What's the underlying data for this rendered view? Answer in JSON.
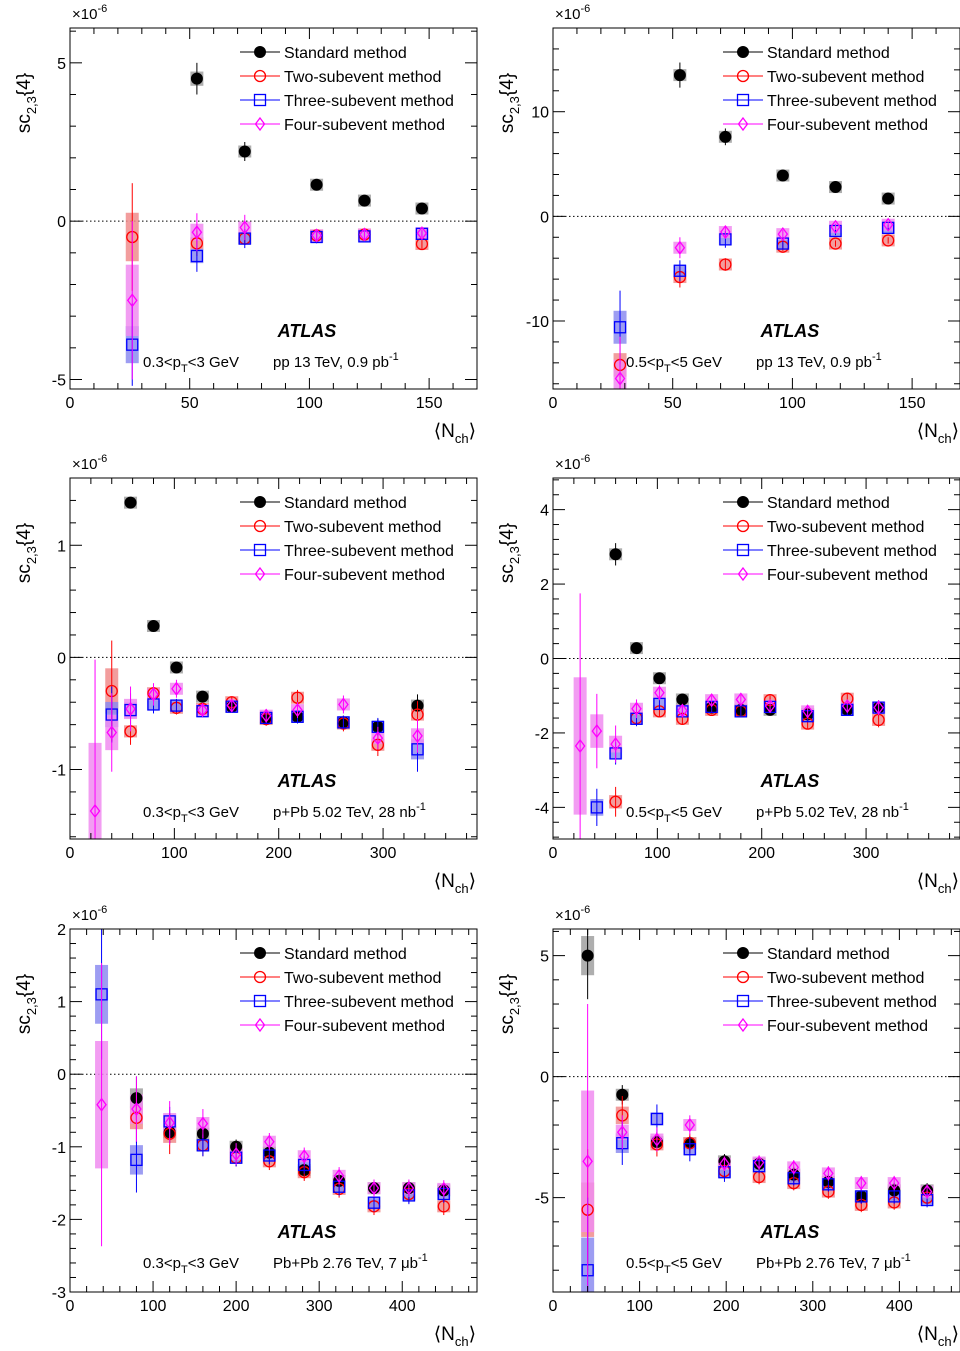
{
  "figure": {
    "legend": [
      "Standard method",
      "Two-subevent method",
      "Three-subevent method",
      "Four-subevent method"
    ],
    "experiment_label": "ATLAS",
    "ylabel_main": "sc",
    "ylabel_sub": "2,3",
    "ylabel_tail": "{4}",
    "xlabel_main": "⟨N",
    "xlabel_sub": "ch",
    "xlabel_tail": "⟩",
    "scale_label_base": "×10",
    "scale_label_exp": "-6"
  },
  "colors": {
    "standard": "#000000",
    "two_subevent": "#ff0000",
    "three_subevent": "#0000ff",
    "four_subevent": "#ff00ff",
    "standard_box": "#a0a0a0",
    "two_subevent_box": "#f08c8c",
    "three_subevent_box": "#8c8cf0",
    "four_subevent_box": "#f08cf0"
  },
  "chart_data": [
    {
      "type": "scatter",
      "kinematics": {
        "pre": "0.3<p",
        "sub": "T",
        "post": "<3 GeV"
      },
      "system": {
        "text": "pp 13 TeV, 0.9 pb",
        "sup": "-1"
      },
      "xlim": [
        0,
        170
      ],
      "ylim": [
        -5.3,
        6.1
      ],
      "xticks": [
        0,
        50,
        100,
        150
      ],
      "yticks": [
        -5,
        0,
        5
      ],
      "xlabel": "⟨Nch⟩",
      "ylabel": "sc2,3{4}",
      "series": [
        {
          "name": "Standard method",
          "x": [
            53,
            73,
            103,
            123,
            147
          ],
          "y": [
            4.5,
            2.2,
            1.15,
            0.65,
            0.4
          ],
          "err": [
            0.5,
            0.3,
            0.15,
            0.1,
            0.08
          ]
        },
        {
          "name": "Two-subevent method",
          "x": [
            26,
            53,
            73,
            103,
            123,
            147
          ],
          "y": [
            -0.5,
            -0.7,
            -0.55,
            -0.45,
            -0.42,
            -0.72
          ],
          "err": [
            1.7,
            0.4,
            0.2,
            0.15,
            0.1,
            0.15
          ]
        },
        {
          "name": "Three-subevent method",
          "x": [
            26,
            53,
            73,
            103,
            123,
            147
          ],
          "y": [
            -3.9,
            -1.1,
            -0.55,
            -0.5,
            -0.48,
            -0.4
          ],
          "err": [
            1.3,
            0.5,
            0.3,
            0.2,
            0.12,
            0.1
          ]
        },
        {
          "name": "Four-subevent method",
          "x": [
            26,
            53,
            73,
            103,
            123,
            147
          ],
          "y": [
            -2.5,
            -0.35,
            -0.2,
            -0.45,
            -0.42,
            -0.38
          ],
          "err": [
            2.5,
            0.6,
            0.4,
            0.2,
            0.15,
            0.12
          ]
        }
      ]
    },
    {
      "type": "scatter",
      "kinematics": {
        "pre": "0.5<p",
        "sub": "T",
        "post": "<5 GeV"
      },
      "system": {
        "text": "pp 13 TeV, 0.9 pb",
        "sup": "-1"
      },
      "xlim": [
        0,
        170
      ],
      "ylim": [
        -16.5,
        18
      ],
      "xticks": [
        0,
        50,
        100,
        150
      ],
      "yticks": [
        -10,
        0,
        10
      ],
      "xlabel": "⟨Nch⟩",
      "ylabel": "sc2,3{4}",
      "series": [
        {
          "name": "Standard method",
          "x": [
            53,
            72,
            96,
            118,
            140
          ],
          "y": [
            13.5,
            7.6,
            3.9,
            2.8,
            1.7
          ],
          "err": [
            1.2,
            0.8,
            0.4,
            0.3,
            0.2
          ]
        },
        {
          "name": "Two-subevent method",
          "x": [
            28,
            53,
            72,
            96,
            118,
            140
          ],
          "y": [
            -14.2,
            -5.8,
            -4.6,
            -2.9,
            -2.6,
            -2.3
          ],
          "err": [
            2.5,
            1.0,
            0.6,
            0.4,
            0.3,
            0.3
          ]
        },
        {
          "name": "Three-subevent method",
          "x": [
            28,
            53,
            72,
            96,
            118,
            140
          ],
          "y": [
            -10.6,
            -5.2,
            -2.2,
            -2.6,
            -1.4,
            -1.1
          ],
          "err": [
            3.5,
            1.0,
            0.8,
            0.5,
            0.4,
            0.3
          ]
        },
        {
          "name": "Four-subevent method",
          "x": [
            28,
            53,
            72,
            96,
            118,
            140
          ],
          "y": [
            -15.5,
            -3.0,
            -1.5,
            -1.7,
            -1.0,
            -0.8
          ],
          "err": [
            4.0,
            1.0,
            0.6,
            0.4,
            0.3,
            0.3
          ]
        }
      ]
    },
    {
      "type": "scatter",
      "kinematics": {
        "pre": "0.3<p",
        "sub": "T",
        "post": "<3 GeV"
      },
      "system": {
        "text": "p+Pb 5.02 TeV, 28 nb",
        "sup": "-1"
      },
      "xlim": [
        0,
        390
      ],
      "ylim": [
        -1.62,
        1.6
      ],
      "xticks": [
        0,
        100,
        200,
        300
      ],
      "yticks": [
        -1,
        0,
        1
      ],
      "xlabel": "⟨Nch⟩",
      "ylabel": "sc2,3{4}",
      "series": [
        {
          "name": "Standard method",
          "x": [
            58,
            80,
            102,
            127,
            155,
            188,
            218,
            262,
            295,
            333
          ],
          "y": [
            1.38,
            0.28,
            -0.09,
            -0.35,
            -0.44,
            -0.54,
            -0.53,
            -0.58,
            -0.62,
            -0.43
          ],
          "err": [
            0.05,
            0.03,
            0.03,
            0.03,
            0.04,
            0.05,
            0.06,
            0.06,
            0.07,
            0.1
          ]
        },
        {
          "name": "Two-subevent method",
          "x": [
            40,
            58,
            80,
            102,
            127,
            155,
            188,
            218,
            262,
            295,
            333
          ],
          "y": [
            -0.3,
            -0.66,
            -0.32,
            -0.45,
            -0.46,
            -0.4,
            -0.55,
            -0.36,
            -0.59,
            -0.78,
            -0.51
          ],
          "err": [
            0.45,
            0.12,
            0.08,
            0.06,
            0.05,
            0.05,
            0.06,
            0.07,
            0.07,
            0.1,
            0.12
          ]
        },
        {
          "name": "Three-subevent method",
          "x": [
            40,
            58,
            80,
            102,
            127,
            155,
            188,
            218,
            262,
            295,
            333
          ],
          "y": [
            -0.51,
            -0.47,
            -0.42,
            -0.43,
            -0.48,
            -0.44,
            -0.54,
            -0.53,
            -0.58,
            -0.62,
            -0.82
          ],
          "err": [
            0.25,
            0.15,
            0.08,
            0.06,
            0.05,
            0.05,
            0.05,
            0.06,
            0.06,
            0.08,
            0.2
          ]
        },
        {
          "name": "Four-subevent method",
          "x": [
            24,
            40,
            58,
            80,
            102,
            127,
            155,
            188,
            218,
            262,
            295,
            333
          ],
          "y": [
            -1.37,
            -0.67,
            -0.46,
            -0.33,
            -0.28,
            -0.47,
            -0.43,
            -0.52,
            -0.47,
            -0.42,
            -0.72,
            -0.7
          ],
          "err": [
            1.35,
            0.35,
            0.2,
            0.1,
            0.08,
            0.06,
            0.05,
            0.06,
            0.07,
            0.08,
            0.1,
            0.15
          ]
        }
      ]
    },
    {
      "type": "scatter",
      "kinematics": {
        "pre": "0.5<p",
        "sub": "T",
        "post": "<5 GeV"
      },
      "system": {
        "text": "p+Pb 5.02 TeV, 28 nb",
        "sup": "-1"
      },
      "xlim": [
        0,
        390
      ],
      "ylim": [
        -4.85,
        4.85
      ],
      "xticks": [
        0,
        100,
        200,
        300
      ],
      "yticks": [
        -4,
        -2,
        0,
        2,
        4
      ],
      "xlabel": "⟨Nch⟩",
      "ylabel": "sc2,3{4}",
      "series": [
        {
          "name": "Standard method",
          "x": [
            60,
            80,
            102,
            124,
            152,
            180,
            208,
            244,
            282,
            312
          ],
          "y": [
            2.8,
            0.28,
            -0.53,
            -1.1,
            -1.32,
            -1.38,
            -1.38,
            -1.5,
            -1.38,
            -1.32
          ],
          "err": [
            0.3,
            0.1,
            0.08,
            0.08,
            0.08,
            0.08,
            0.09,
            0.1,
            0.1,
            0.12
          ]
        },
        {
          "name": "Two-subevent method",
          "x": [
            60,
            80,
            102,
            124,
            152,
            180,
            208,
            244,
            282,
            312
          ],
          "y": [
            -3.85,
            -1.6,
            -1.42,
            -1.62,
            -1.38,
            -1.42,
            -1.12,
            -1.75,
            -1.08,
            -1.65
          ],
          "err": [
            0.4,
            0.2,
            0.15,
            0.15,
            0.12,
            0.12,
            0.12,
            0.15,
            0.15,
            0.2
          ]
        },
        {
          "name": "Three-subevent method",
          "x": [
            42,
            60,
            80,
            102,
            124,
            152,
            180,
            208,
            244,
            282,
            312
          ],
          "y": [
            -4.0,
            -2.55,
            -1.62,
            -1.22,
            -1.42,
            -1.3,
            -1.42,
            -1.3,
            -1.55,
            -1.38,
            -1.32
          ],
          "err": [
            0.5,
            0.3,
            0.2,
            0.15,
            0.12,
            0.12,
            0.12,
            0.12,
            0.15,
            0.15,
            0.2
          ]
        },
        {
          "name": "Four-subevent method",
          "x": [
            26,
            42,
            60,
            80,
            102,
            124,
            152,
            180,
            208,
            244,
            282,
            312
          ],
          "y": [
            -2.35,
            -1.95,
            -2.3,
            -1.35,
            -0.92,
            -1.4,
            -1.12,
            -1.1,
            -1.28,
            -1.42,
            -1.28,
            -1.32
          ],
          "err": [
            4.1,
            1.0,
            0.5,
            0.25,
            0.2,
            0.15,
            0.12,
            0.12,
            0.12,
            0.15,
            0.15,
            0.2
          ]
        }
      ]
    },
    {
      "type": "scatter",
      "kinematics": {
        "pre": "0.3<p",
        "sub": "T",
        "post": "<3 GeV"
      },
      "system": {
        "text": "Pb+Pb 2.76 TeV, 7 μb",
        "sup": "-1"
      },
      "xlim": [
        0,
        490
      ],
      "ylim": [
        -3,
        2
      ],
      "xticks": [
        0,
        100,
        200,
        300,
        400
      ],
      "yticks": [
        -3,
        -2,
        -1,
        0,
        1,
        2
      ],
      "xlabel": "⟨Nch⟩",
      "ylabel": "sc2,3{4}",
      "series": [
        {
          "name": "Standard method",
          "x": [
            80,
            120,
            160,
            200,
            240,
            282,
            324,
            366,
            408,
            450
          ],
          "y": [
            -0.33,
            -0.8,
            -0.82,
            -1.0,
            -1.08,
            -1.32,
            -1.47,
            -1.57,
            -1.57,
            -1.6
          ],
          "err": [
            0.3,
            0.15,
            0.1,
            0.1,
            0.1,
            0.1,
            0.1,
            0.1,
            0.1,
            0.1
          ]
        },
        {
          "name": "Two-subevent method",
          "x": [
            80,
            120,
            160,
            200,
            240,
            282,
            324,
            366,
            408,
            450
          ],
          "y": [
            -0.6,
            -0.82,
            -0.98,
            -1.15,
            -1.2,
            -1.35,
            -1.58,
            -1.82,
            -1.65,
            -1.82
          ],
          "err": [
            0.35,
            0.28,
            0.15,
            0.12,
            0.12,
            0.12,
            0.12,
            0.12,
            0.12,
            0.12
          ]
        },
        {
          "name": "Three-subevent method",
          "x": [
            38,
            80,
            120,
            160,
            200,
            240,
            282,
            324,
            366,
            408,
            450
          ],
          "y": [
            1.1,
            -1.18,
            -0.65,
            -0.98,
            -1.15,
            -1.12,
            -1.25,
            -1.55,
            -1.77,
            -1.67,
            -1.65
          ],
          "err": [
            0.9,
            0.45,
            0.2,
            0.15,
            0.12,
            0.12,
            0.12,
            0.12,
            0.12,
            0.12,
            0.12
          ]
        },
        {
          "name": "Four-subevent method",
          "x": [
            38,
            80,
            120,
            160,
            200,
            240,
            282,
            324,
            366,
            408,
            450
          ],
          "y": [
            -0.42,
            -0.48,
            -0.67,
            -0.68,
            -1.1,
            -0.93,
            -1.13,
            -1.4,
            -1.57,
            -1.57,
            -1.58
          ],
          "err": [
            1.95,
            0.45,
            0.3,
            0.2,
            0.15,
            0.12,
            0.12,
            0.12,
            0.12,
            0.12,
            0.12
          ]
        }
      ]
    },
    {
      "type": "scatter",
      "kinematics": {
        "pre": "0.5<p",
        "sub": "T",
        "post": "<5 GeV"
      },
      "system": {
        "text": "Pb+Pb 2.76 TeV, 7 μb",
        "sup": "-1"
      },
      "xlim": [
        0,
        470
      ],
      "ylim": [
        -8.9,
        6.1
      ],
      "xticks": [
        0,
        100,
        200,
        300,
        400
      ],
      "yticks": [
        -5,
        0,
        5
      ],
      "xlabel": "⟨Nch⟩",
      "ylabel": "sc2,3{4}",
      "series": [
        {
          "name": "Standard method",
          "x": [
            40,
            80,
            120,
            158,
            198,
            238,
            278,
            318,
            356,
            394,
            432
          ],
          "y": [
            5.0,
            -0.75,
            -2.7,
            -2.75,
            -3.5,
            -3.6,
            -4.05,
            -4.35,
            -4.95,
            -4.7,
            -4.7
          ],
          "err": [
            1.8,
            0.4,
            0.4,
            0.3,
            0.3,
            0.3,
            0.3,
            0.3,
            0.3,
            0.3,
            0.3
          ]
        },
        {
          "name": "Two-subevent method",
          "x": [
            40,
            80,
            120,
            158,
            198,
            238,
            278,
            318,
            356,
            394,
            432
          ],
          "y": [
            -5.5,
            -1.6,
            -2.8,
            -2.75,
            -3.9,
            -4.15,
            -4.4,
            -4.75,
            -5.3,
            -5.2,
            -5.0
          ],
          "err": [
            2.5,
            0.8,
            0.5,
            0.4,
            0.3,
            0.3,
            0.3,
            0.3,
            0.3,
            0.3,
            0.3
          ]
        },
        {
          "name": "Three-subevent method",
          "x": [
            40,
            80,
            120,
            158,
            198,
            238,
            278,
            318,
            356,
            394,
            432
          ],
          "y": [
            -8.0,
            -2.75,
            -1.75,
            -3.0,
            -3.95,
            -3.7,
            -4.2,
            -4.45,
            -4.95,
            -4.95,
            -5.1
          ],
          "err": [
            3.0,
            0.9,
            0.6,
            0.5,
            0.4,
            0.3,
            0.3,
            0.3,
            0.3,
            0.3,
            0.3
          ]
        },
        {
          "name": "Four-subevent method",
          "x": [
            40,
            80,
            120,
            158,
            198,
            238,
            278,
            318,
            356,
            394,
            432
          ],
          "y": [
            -3.5,
            -2.3,
            -2.6,
            -2.0,
            -3.6,
            -3.55,
            -3.75,
            -4.0,
            -4.4,
            -4.4,
            -4.75
          ],
          "err": [
            6.5,
            0.7,
            0.5,
            0.4,
            0.3,
            0.3,
            0.3,
            0.3,
            0.3,
            0.3,
            0.3
          ]
        }
      ]
    }
  ]
}
